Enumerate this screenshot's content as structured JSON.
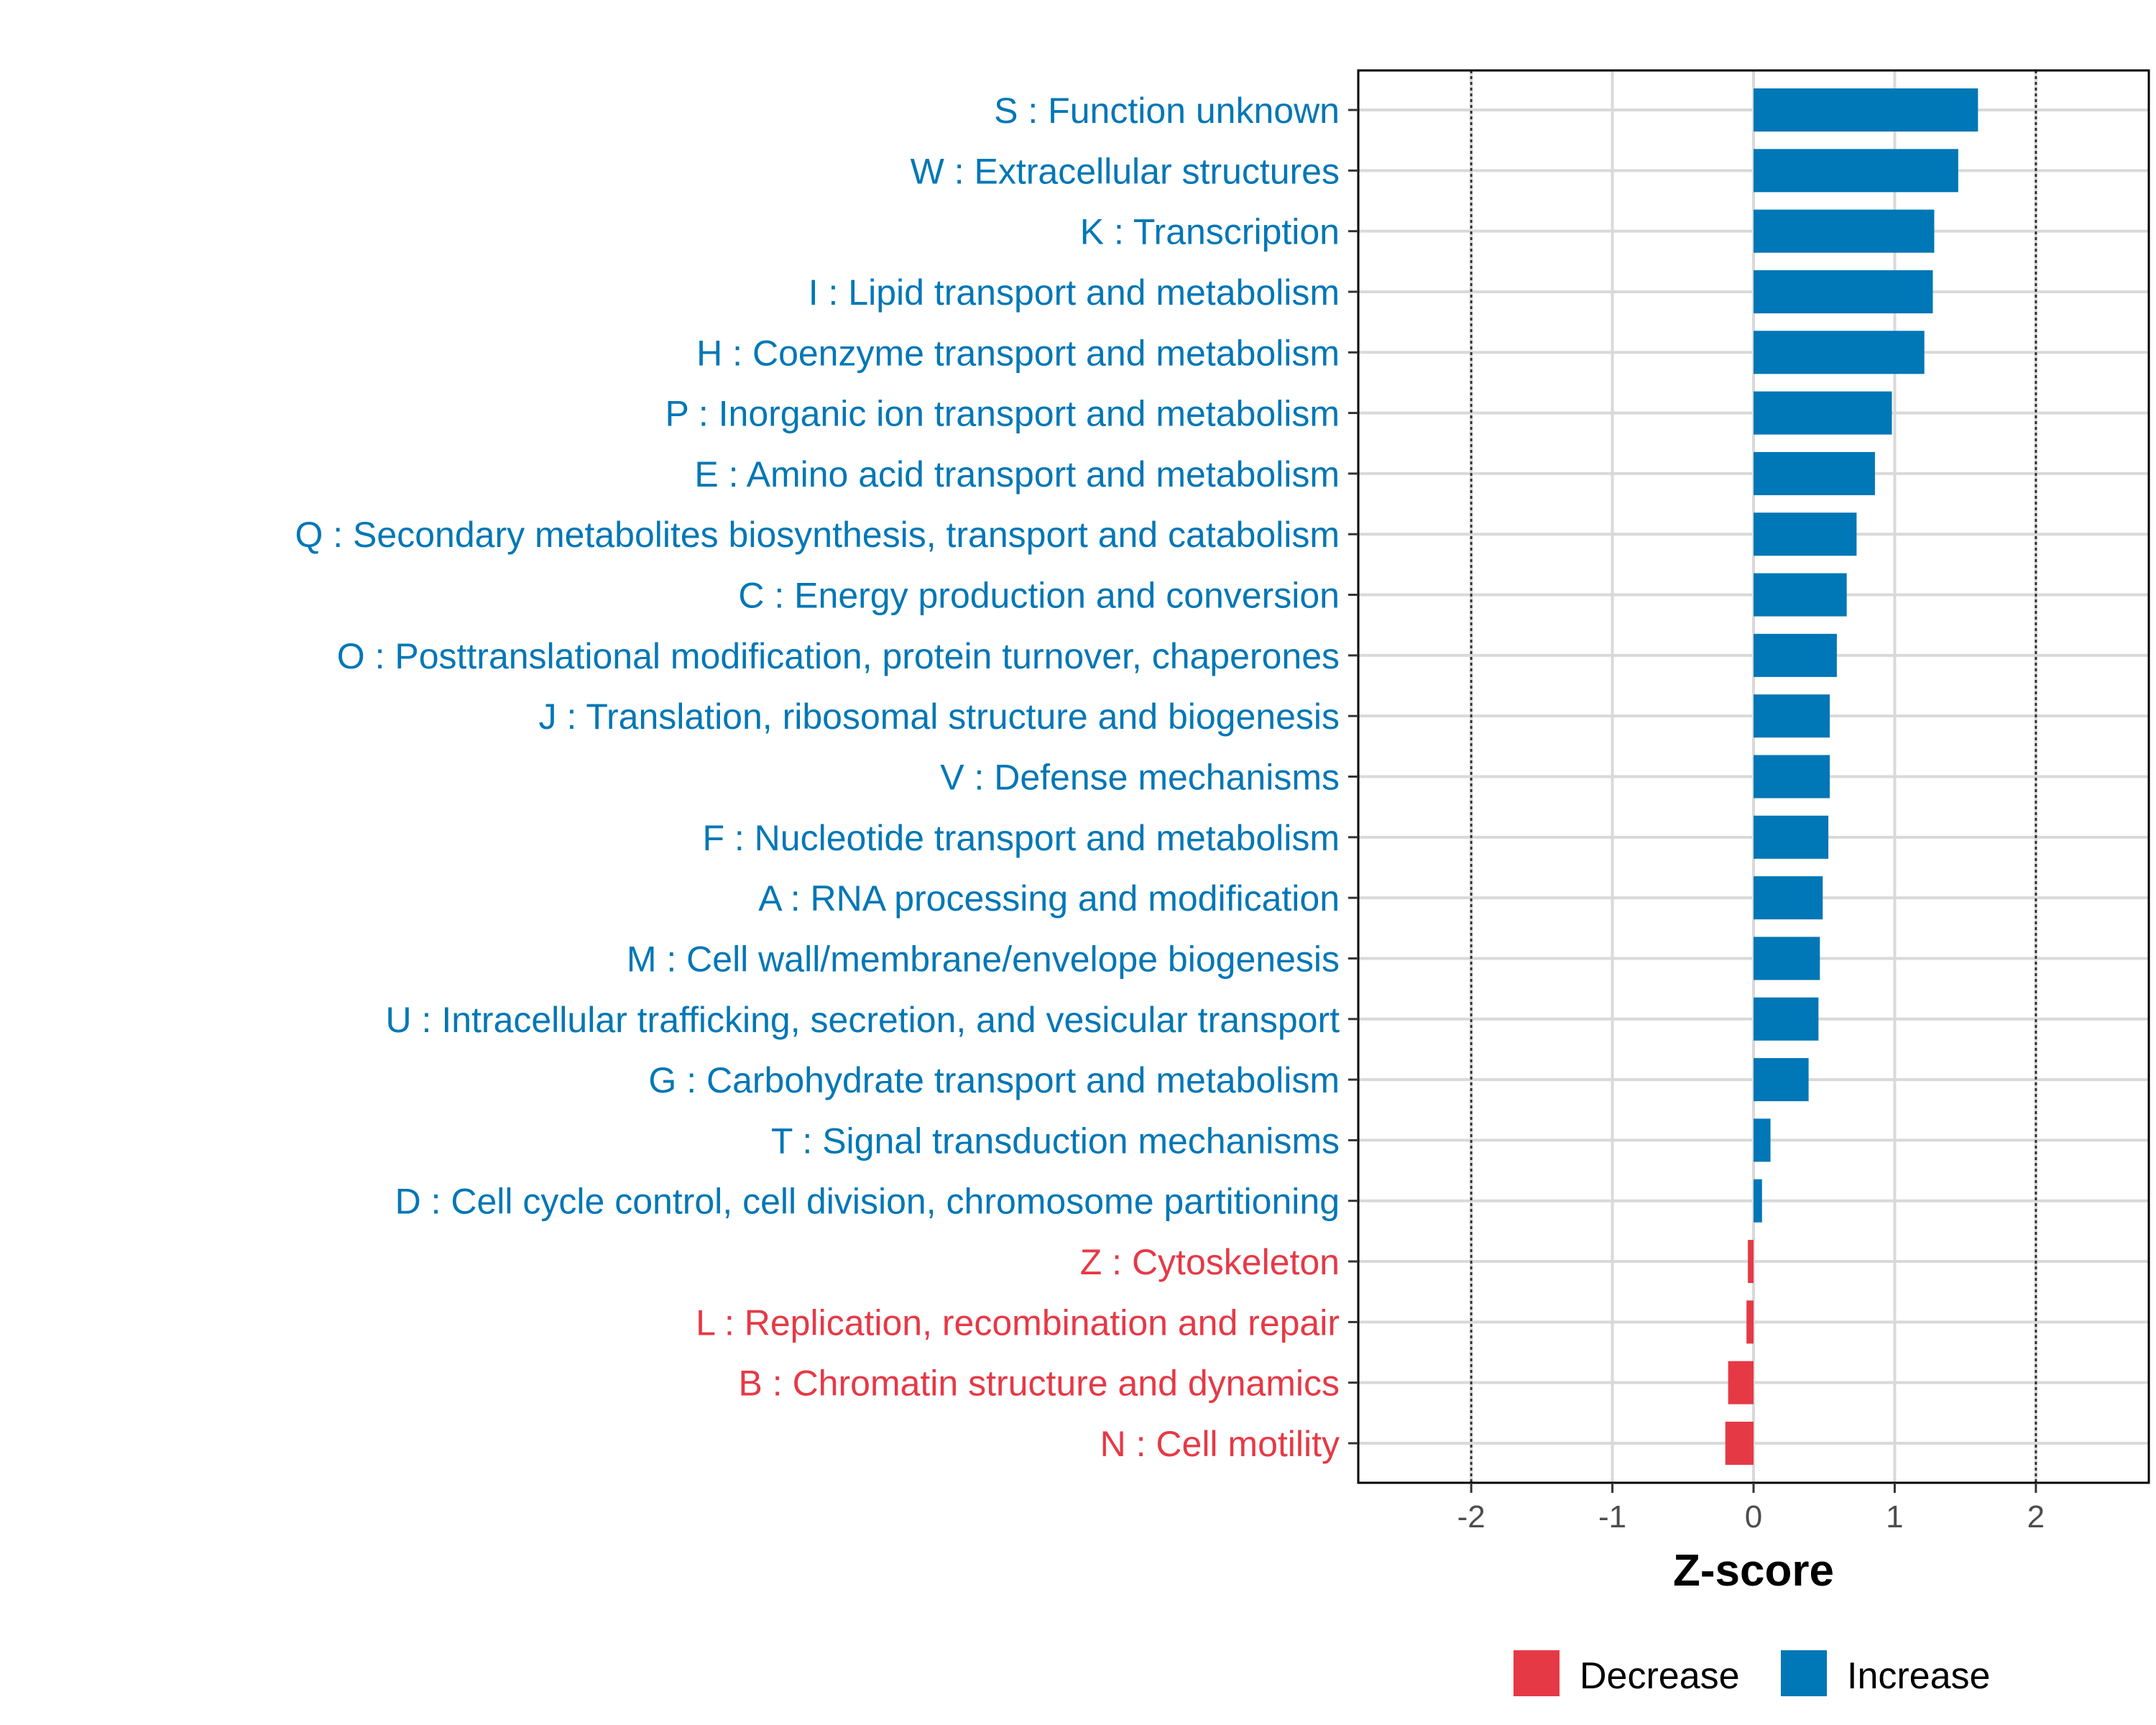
{
  "chart_data": {
    "type": "bar",
    "orientation": "horizontal",
    "title": "",
    "xlabel": "Z-score",
    "ylabel": "",
    "xlim": [
      -2.8,
      2.8
    ],
    "xticks": [
      -2,
      -1,
      0,
      1,
      2
    ],
    "xtick_labels": [
      "-2",
      "-1",
      "0",
      "1",
      "2"
    ],
    "reference_lines": [
      -2,
      2
    ],
    "grid": true,
    "legend_position": "bottom",
    "colors": {
      "Decrease": "#E63946",
      "Increase": "#0077B6"
    },
    "categories": [
      "S : Function unknown",
      "W : Extracellular structures",
      "K : Transcription",
      "I : Lipid transport and metabolism",
      "H : Coenzyme transport and metabolism",
      "P : Inorganic ion transport and metabolism",
      "E : Amino acid transport and metabolism",
      "Q : Secondary metabolites biosynthesis, transport and catabolism",
      "C : Energy production and conversion",
      "O : Posttranslational modification, protein turnover, chaperones",
      "J : Translation, ribosomal structure and biogenesis",
      "V : Defense mechanisms",
      "F : Nucleotide transport and metabolism",
      "A : RNA processing and modification",
      "M : Cell wall/membrane/envelope biogenesis",
      "U : Intracellular trafficking, secretion, and vesicular transport",
      "G : Carbohydrate transport and metabolism",
      "T : Signal transduction mechanisms",
      "D : Cell cycle control, cell division, chromosome partitioning",
      "Z : Cytoskeleton",
      "L : Replication, recombination and repair",
      "B : Chromatin structure and dynamics",
      "N : Cell motility"
    ],
    "values": [
      1.59,
      1.45,
      1.28,
      1.27,
      1.21,
      0.98,
      0.86,
      0.73,
      0.66,
      0.59,
      0.54,
      0.54,
      0.53,
      0.49,
      0.47,
      0.46,
      0.39,
      0.12,
      0.06,
      -0.04,
      -0.05,
      -0.18,
      -0.2
    ],
    "groups": [
      "Increase",
      "Increase",
      "Increase",
      "Increase",
      "Increase",
      "Increase",
      "Increase",
      "Increase",
      "Increase",
      "Increase",
      "Increase",
      "Increase",
      "Increase",
      "Increase",
      "Increase",
      "Increase",
      "Increase",
      "Increase",
      "Increase",
      "Decrease",
      "Decrease",
      "Decrease",
      "Decrease"
    ],
    "legend": [
      "Decrease",
      "Increase"
    ]
  }
}
